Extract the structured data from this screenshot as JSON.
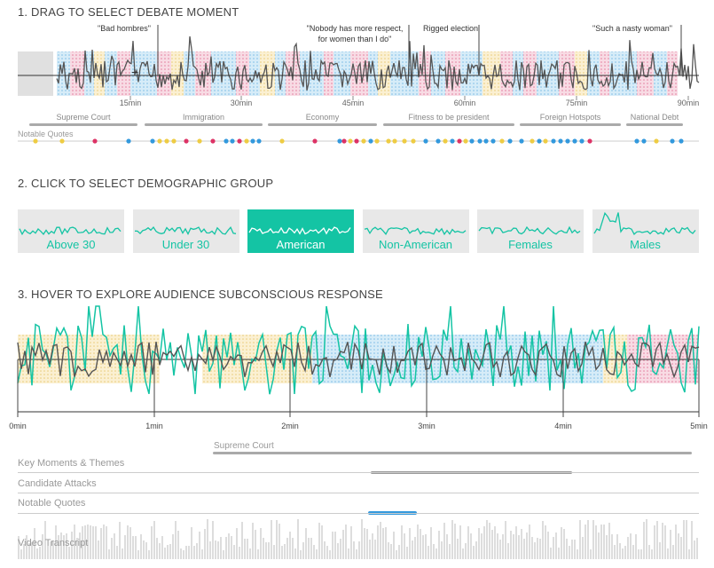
{
  "step1": {
    "title": "1. DRAG TO SELECT DEBATE MOMENT",
    "quotes": [
      "\"Bad hombres\"",
      "\"Nobody has more respect,",
      "for women than I do\"",
      "Rigged election",
      "\"Such a nasty woman\""
    ],
    "time_ticks": [
      "15min",
      "30min",
      "45min",
      "60min",
      "75min",
      "90min"
    ],
    "topics": [
      "Supreme Court",
      "Immigration",
      "Economy",
      "Fitness to be president",
      "Foreign Hotspots",
      "National Debt"
    ],
    "notable_label": "Notable Quotes"
  },
  "step2": {
    "title": "2. CLICK TO SELECT DEMOGRAPHIC GROUP",
    "groups": [
      "Above 30",
      "Under 30",
      "American",
      "Non-American",
      "Females",
      "Males"
    ],
    "selected": "American"
  },
  "step3": {
    "title": "3. HOVER TO EXPLORE AUDIENCE SUBCONSCIOUS RESPONSE",
    "time_ticks": [
      "0min",
      "1min",
      "2min",
      "3min",
      "4min",
      "5min"
    ],
    "topic": "Supreme Court",
    "rows": [
      "Key Moments & Themes",
      "Candidate Attacks",
      "Notable Quotes",
      "Video Transcript"
    ]
  },
  "colors": {
    "teal": "#14c4a4",
    "blue": "#3399dd",
    "pink": "#dd3366",
    "yellow": "#eecc44",
    "gray": "#555555"
  }
}
